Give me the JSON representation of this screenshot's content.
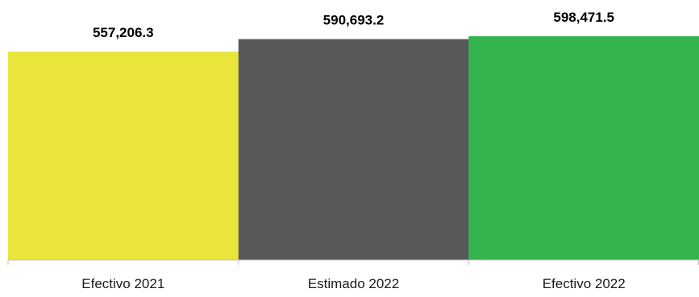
{
  "chart_data": {
    "type": "bar",
    "categories": [
      "Efectivo 2021",
      "Estimado 2022",
      "Efectivo 2022"
    ],
    "values": [
      557206.3,
      590693.2,
      598471.5
    ],
    "data_labels": [
      "557,206.3",
      "590,693.2",
      "598,471.5"
    ],
    "colors": [
      "#E9E53A",
      "#595959",
      "#34B44F"
    ],
    "axis_color": "#bfbfbf",
    "grid": false,
    "legend": "none",
    "title": "",
    "xlabel": "",
    "ylabel": ""
  }
}
